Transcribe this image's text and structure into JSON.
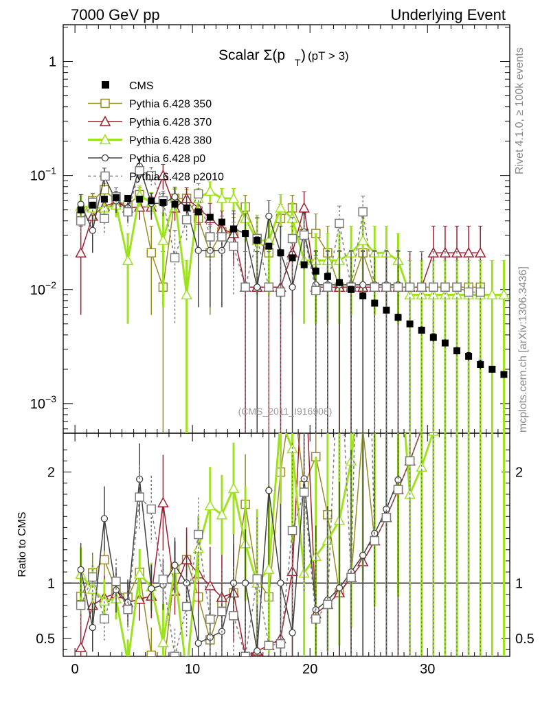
{
  "header": {
    "left": "7000 GeV pp",
    "right": "Underlying Event",
    "side_top": "Rivet 4.1.0, ≥ 100k events",
    "side_bottom": "mcplots.cern.ch [arXiv:1306.3436]",
    "watermark": "(CMS_2011_I916908)"
  },
  "colors": {
    "cms": "#000000",
    "p350": "#9a8a24",
    "p370": "#a01c2c",
    "p380": "#9ee21f",
    "p0": "#404040",
    "p2010": "#7a7a7a"
  },
  "chart_data": {
    "type": "scatter",
    "title_main": "Scalar Σ(p",
    "title_sub": "T",
    "title_close": ")",
    "title_cut": "(pT >  3)",
    "xlim": [
      -1,
      37
    ],
    "ylim": [
      0.00055,
      2.1
    ],
    "ratio_ylim": [
      0.34,
      2.35
    ],
    "ratio_ylabel": "Ratio to CMS",
    "x_ticks": [
      "0",
      "10",
      "20",
      "30"
    ],
    "x_tick_values": [
      0,
      10,
      20,
      30
    ],
    "y_ticks": [
      {
        "value": 1,
        "base": "1",
        "exp": ""
      },
      {
        "value": 0.1,
        "base": "10",
        "exp": "−1"
      },
      {
        "value": 0.01,
        "base": "10",
        "exp": "−2"
      },
      {
        "value": 0.001,
        "base": "10",
        "exp": "−3"
      }
    ],
    "ratio_ticks": [
      {
        "value": 2,
        "label": "2"
      },
      {
        "value": 1,
        "label": "1"
      },
      {
        "value": 0.5,
        "label": "0.5"
      }
    ],
    "x": [
      0.5,
      1.5,
      2.5,
      3.5,
      4.5,
      5.5,
      6.5,
      7.5,
      8.5,
      9.5,
      10.5,
      11.5,
      12.5,
      13.5,
      14.5,
      15.5,
      16.5,
      17.5,
      18.5,
      19.5,
      20.5,
      21.5,
      22.5,
      23.5,
      24.5,
      25.5,
      26.5,
      27.5,
      28.5,
      29.5,
      30.5,
      31.5,
      32.5,
      33.5,
      34.5,
      35.5,
      36.5
    ],
    "series": [
      {
        "name": "CMS",
        "color": "#000000",
        "marker": "filled-square",
        "style": "points",
        "values": [
          0.05,
          0.055,
          0.062,
          0.064,
          0.063,
          0.062,
          0.06,
          0.058,
          0.056,
          0.052,
          0.048,
          0.043,
          0.039,
          0.034,
          0.031,
          0.027,
          0.024,
          0.021,
          0.019,
          0.0165,
          0.0145,
          0.013,
          0.0115,
          0.01,
          0.0088,
          0.0076,
          0.0066,
          0.0057,
          0.005,
          0.0044,
          0.0038,
          0.0034,
          0.0029,
          0.0026,
          0.0022,
          0.002,
          0.0018
        ],
        "errors": [
          0.003,
          0.003,
          0.003,
          0.003,
          0.003,
          0.003,
          0.003,
          0.003,
          0.003,
          0.003,
          0.003,
          0.002,
          0.002,
          0.002,
          0.002,
          0.002,
          0.001,
          0.001,
          0.001,
          0.001,
          0.001,
          0.001,
          0.0008,
          0.0007,
          0.0006,
          0.0005,
          0.0004,
          0.0004,
          0.0003,
          0.0003,
          0.0003,
          0.0002,
          0.0002,
          0.0002,
          0.0002,
          0.0001,
          0.0001
        ]
      },
      {
        "name": "Pythia 6.428 350",
        "color": "#9a8a24",
        "marker": "open-square",
        "style": "solid",
        "values": [
          0.044,
          0.06,
          0.075,
          0.06,
          0.055,
          0.068,
          0.021,
          0.0105,
          0.063,
          0.063,
          0.042,
          0.021,
          0.032,
          0.031,
          0.053,
          0.028,
          0.021,
          0.042,
          0.052,
          0.031,
          0.031,
          0.021,
          0.0105,
          0.0105,
          0.021,
          0.0105,
          0.0105,
          0.0105,
          0.0105,
          0.0105,
          0.0105,
          0.0105,
          0.0105,
          0.0105,
          0.0105
        ],
        "errors": [
          0.009,
          0.009,
          0.01,
          0.01,
          0.009,
          0.01,
          0.015,
          0.011,
          0.012,
          0.012,
          0.012,
          0.015,
          0.012,
          0.012,
          0.014,
          0.014,
          0.015,
          0.014,
          0.015,
          0.015,
          0.015,
          0.015,
          0.011,
          0.011,
          0.015,
          0.011,
          0.011,
          0.011,
          0.011,
          0.011,
          0.011,
          0.011,
          0.011,
          0.011,
          0.011
        ]
      },
      {
        "name": "Pythia 6.428 370",
        "color": "#a01c2c",
        "marker": "open-triangle",
        "style": "solid",
        "values": [
          0.021,
          0.044,
          0.054,
          0.058,
          0.052,
          0.053,
          0.053,
          0.1,
          0.052,
          0.063,
          0.052,
          0.042,
          0.034,
          0.031,
          0.0105,
          0.0105,
          0.0105,
          0.0105,
          0.021,
          0.052,
          0.0105,
          0.0105,
          0.0105,
          0.0105,
          0.0105,
          0.0105,
          0.0105,
          0.0105,
          0.0105,
          0.0105,
          0.021,
          0.021,
          0.021,
          0.021,
          0.021
        ],
        "errors": [
          0.015,
          0.012,
          0.012,
          0.012,
          0.012,
          0.012,
          0.012,
          0.025,
          0.012,
          0.015,
          0.015,
          0.015,
          0.015,
          0.015,
          0.011,
          0.011,
          0.011,
          0.011,
          0.015,
          0.02,
          0.011,
          0.011,
          0.011,
          0.011,
          0.011,
          0.011,
          0.011,
          0.011,
          0.011,
          0.011,
          0.015,
          0.015,
          0.015,
          0.015,
          0.015
        ]
      },
      {
        "name": "Pythia 6.428 380",
        "color": "#9ee21f",
        "marker": "open-triangle",
        "style": "solid",
        "values": [
          0.054,
          0.052,
          0.052,
          0.055,
          0.018,
          0.067,
          0.058,
          0.027,
          0.063,
          0.009,
          0.063,
          0.073,
          0.063,
          0.063,
          0.042,
          0.027,
          0.027,
          0.052,
          0.042,
          0.018,
          0.018,
          0.018,
          0.018,
          0.021,
          0.027,
          0.021,
          0.021,
          0.018,
          0.009,
          0.009,
          0.009,
          0.009,
          0.009,
          0.009,
          0.009,
          0.009,
          0.009
        ],
        "errors": [
          0.012,
          0.012,
          0.012,
          0.012,
          0.013,
          0.014,
          0.013,
          0.02,
          0.014,
          0.009,
          0.014,
          0.015,
          0.014,
          0.014,
          0.016,
          0.018,
          0.018,
          0.016,
          0.016,
          0.013,
          0.013,
          0.013,
          0.013,
          0.015,
          0.018,
          0.015,
          0.015,
          0.013,
          0.009,
          0.009,
          0.009,
          0.009,
          0.009,
          0.009,
          0.009,
          0.009,
          0.009
        ]
      },
      {
        "name": "Pythia 6.428 p0",
        "color": "#404040",
        "marker": "open-circle",
        "style": "solid",
        "values": [
          0.056,
          0.033,
          0.098,
          0.06,
          0.052,
          0.12,
          0.057,
          0.057,
          0.065,
          0.052,
          0.022,
          0.022,
          0.022,
          0.034,
          0.031,
          0.0105,
          0.044,
          0.021,
          0.0105,
          0.032,
          0.011,
          0.011,
          0.011,
          0.011,
          0.011,
          0.011,
          0.011,
          0.011
        ],
        "errors": [
          0.012,
          0.012,
          0.018,
          0.013,
          0.013,
          0.02,
          0.013,
          0.013,
          0.014,
          0.013,
          0.015,
          0.015,
          0.015,
          0.015,
          0.015,
          0.011,
          0.016,
          0.015,
          0.011,
          0.015,
          0.011,
          0.011,
          0.011,
          0.011,
          0.011,
          0.011,
          0.011,
          0.011
        ]
      },
      {
        "name": "Pythia 6.428 p2010",
        "color": "#7a7a7a",
        "marker": "open-square",
        "style": "dashed",
        "values": [
          0.04,
          0.058,
          0.042,
          0.065,
          0.048,
          0.11,
          0.1,
          0.06,
          0.019,
          0.041,
          0.069,
          0.029,
          0.029,
          0.024,
          0.0105,
          0.028,
          0.0105,
          0.0095,
          0.028,
          0.03,
          0.0098,
          0.0105,
          0.038,
          0.0105,
          0.048,
          0.0105,
          0.0105,
          0.0105,
          0.0105,
          0.0105,
          0.0105,
          0.0105,
          0.0105,
          0.0095,
          0.0095
        ],
        "errors": [
          0.01,
          0.012,
          0.012,
          0.013,
          0.012,
          0.018,
          0.018,
          0.013,
          0.014,
          0.014,
          0.016,
          0.015,
          0.015,
          0.015,
          0.011,
          0.015,
          0.011,
          0.01,
          0.015,
          0.015,
          0.01,
          0.011,
          0.016,
          0.011,
          0.018,
          0.011,
          0.011,
          0.011,
          0.011,
          0.011,
          0.011,
          0.011,
          0.011,
          0.01,
          0.01
        ]
      }
    ]
  }
}
